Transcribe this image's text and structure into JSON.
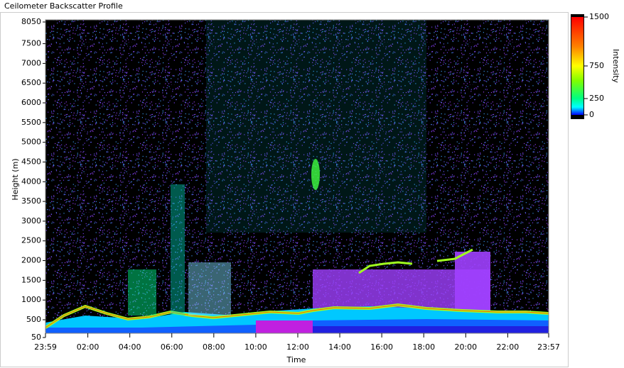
{
  "window_title": "Ceilometer Backscatter Profile",
  "chart_data": {
    "type": "heatmap",
    "xlabel": "Time",
    "ylabel": "Height (m)",
    "xlim": [
      -0.0167,
      23.95
    ],
    "xticks": [
      {
        "value": -0.0167,
        "label": "23:59"
      },
      {
        "value": 2,
        "label": "02:00"
      },
      {
        "value": 4,
        "label": "04:00"
      },
      {
        "value": 6,
        "label": "06:00"
      },
      {
        "value": 8,
        "label": "08:00"
      },
      {
        "value": 10,
        "label": "10:00"
      },
      {
        "value": 12,
        "label": "12:00"
      },
      {
        "value": 14,
        "label": "14:00"
      },
      {
        "value": 16,
        "label": "16:00"
      },
      {
        "value": 18,
        "label": "18:00"
      },
      {
        "value": 20,
        "label": "20:00"
      },
      {
        "value": 22,
        "label": "22:00"
      },
      {
        "value": 23.95,
        "label": "23:57"
      }
    ],
    "ylim": [
      50,
      8050
    ],
    "yticks": [
      50,
      500,
      1000,
      1500,
      2000,
      2500,
      3000,
      3500,
      4000,
      4500,
      5000,
      5500,
      6000,
      6500,
      7000,
      7500,
      8050
    ],
    "colorbar": {
      "label": "Intensity",
      "clim": [
        0,
        1500
      ],
      "ticks": [
        0,
        250,
        750,
        1500
      ]
    }
  }
}
